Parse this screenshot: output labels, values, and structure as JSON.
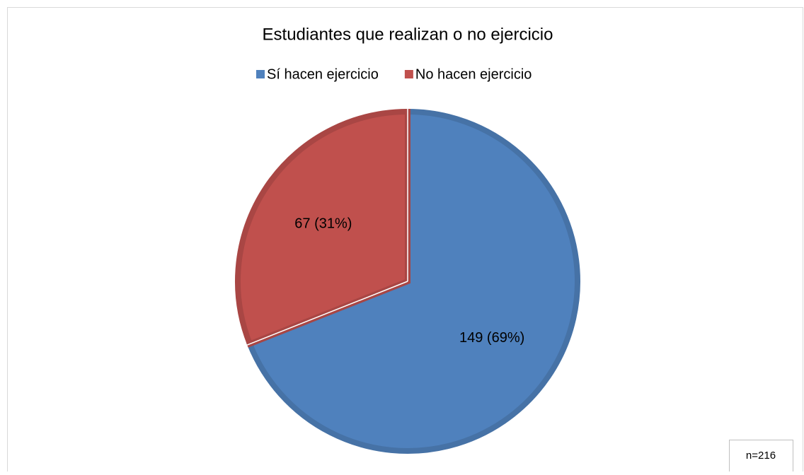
{
  "chart_data": {
    "type": "pie",
    "title": "Estudiantes que realizan o no ejercicio",
    "categories": [
      "Sí hacen ejercicio",
      "No hacen ejercicio"
    ],
    "values": [
      149,
      67
    ],
    "value_labels": [
      "149 (69%)",
      "67 (31%)"
    ],
    "colors": [
      "#4f81bd",
      "#c0504d"
    ],
    "legend": "top",
    "annotation": "n=216"
  }
}
